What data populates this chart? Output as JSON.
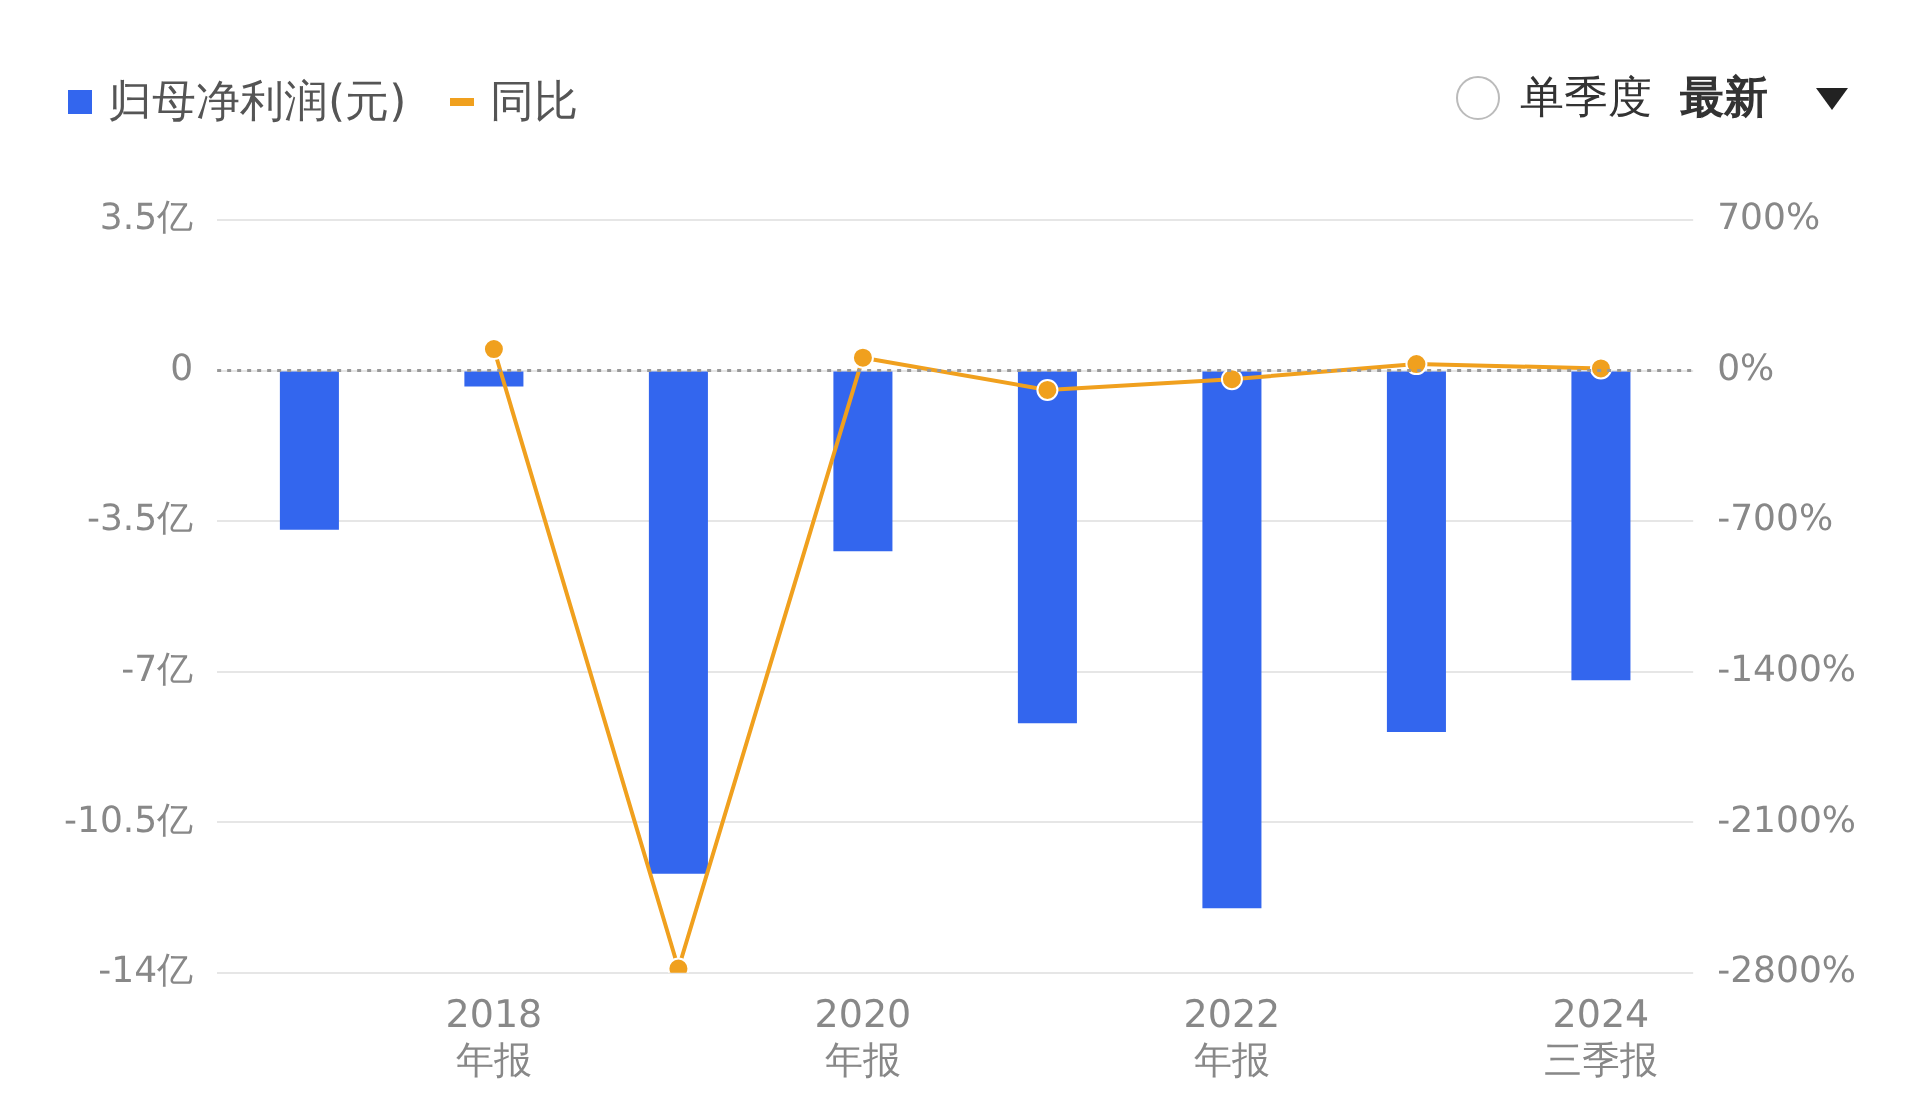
{
  "chart_data": {
    "type": "bar",
    "categories": [
      null,
      "2018\n年报",
      null,
      "2020\n年报",
      null,
      "2022\n年报",
      null,
      "2024\n三季报"
    ],
    "series": [
      {
        "name": "归母净利润(元)",
        "color": "#3366ee",
        "values": [
          -3.7,
          -0.37,
          -11.7,
          -4.2,
          -8.2,
          -12.5,
          -8.4,
          -7.2
        ]
      },
      {
        "name": "同比",
        "type": "line",
        "axis": "y2",
        "color": "#f0a01e",
        "values": [
          null,
          100,
          -2780,
          60,
          -90,
          -40,
          30,
          10
        ]
      }
    ],
    "ylim": [
      -14,
      3.5
    ],
    "yticks": [
      {
        "value": 3.5,
        "label": "3.5亿"
      },
      0,
      {
        "value": -3.5,
        "label": "-3.5亿"
      },
      {
        "value": -7,
        "label": "-7亿"
      },
      {
        "value": -10.5,
        "label": "-10.5亿"
      },
      {
        "value": -14,
        "label": "-14亿"
      }
    ],
    "y2lim": [
      -2800,
      700
    ],
    "y2ticks": [
      {
        "value": 700,
        "label": "700%"
      },
      {
        "value": 0,
        "label": "0%"
      },
      {
        "value": -700,
        "label": "-700%"
      },
      {
        "value": -1400,
        "label": "-1400%"
      },
      {
        "value": -2100,
        "label": "-2100%"
      },
      {
        "value": -2800,
        "label": "-2800%"
      }
    ],
    "ref_lines": [
      {
        "axis": "y",
        "value": 0,
        "color": "#999999",
        "line_style": "dotted"
      }
    ],
    "grid": "y",
    "legend": "top left",
    "marker": "circle",
    "annotations": [
      "单季度",
      "最新"
    ]
  }
}
